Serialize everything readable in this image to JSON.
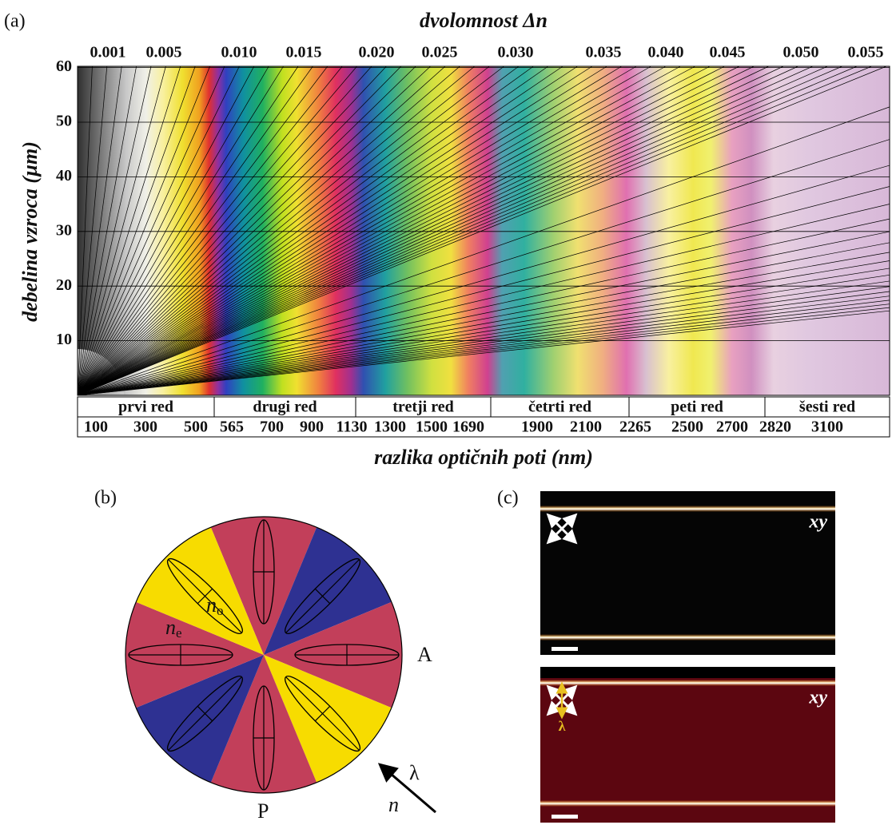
{
  "panel_a": {
    "label": "(a)",
    "top_axis_title": "dvolomnost Δn",
    "top_ticks": [
      "0.001",
      "0.005",
      "0.010",
      "0.015",
      "0.020",
      "0.025",
      "0.030",
      "0.035",
      "0.040",
      "0.045",
      "0.050",
      "0.055"
    ],
    "y_axis_title": "debelina vzroca (µm)",
    "y_ticks": [
      "10",
      "20",
      "30",
      "40",
      "50",
      "60"
    ],
    "orders": [
      "prvi red",
      "drugi red",
      "tretji red",
      "četrti red",
      "peti red",
      "šesti red"
    ],
    "path_ticks": [
      "100",
      "300",
      "500",
      "565",
      "700",
      "900",
      "1130",
      "1300",
      "1500",
      "1690",
      "1900",
      "2100",
      "2265",
      "2500",
      "2700",
      "2820",
      "3100"
    ],
    "x_axis_title": "razlika optičnih poti (nm)"
  },
  "panel_b": {
    "label": "(b)",
    "ne": {
      "base": "n",
      "sub": "e"
    },
    "no": {
      "base": "n",
      "sub": "o"
    },
    "analyzer": "A",
    "polarizer": "P",
    "wavelength": "λ",
    "index": "n"
  },
  "panel_c": {
    "label": "(c)",
    "images": [
      {
        "tag": "xy"
      },
      {
        "tag": "xy",
        "marker": "λ"
      }
    ]
  }
}
